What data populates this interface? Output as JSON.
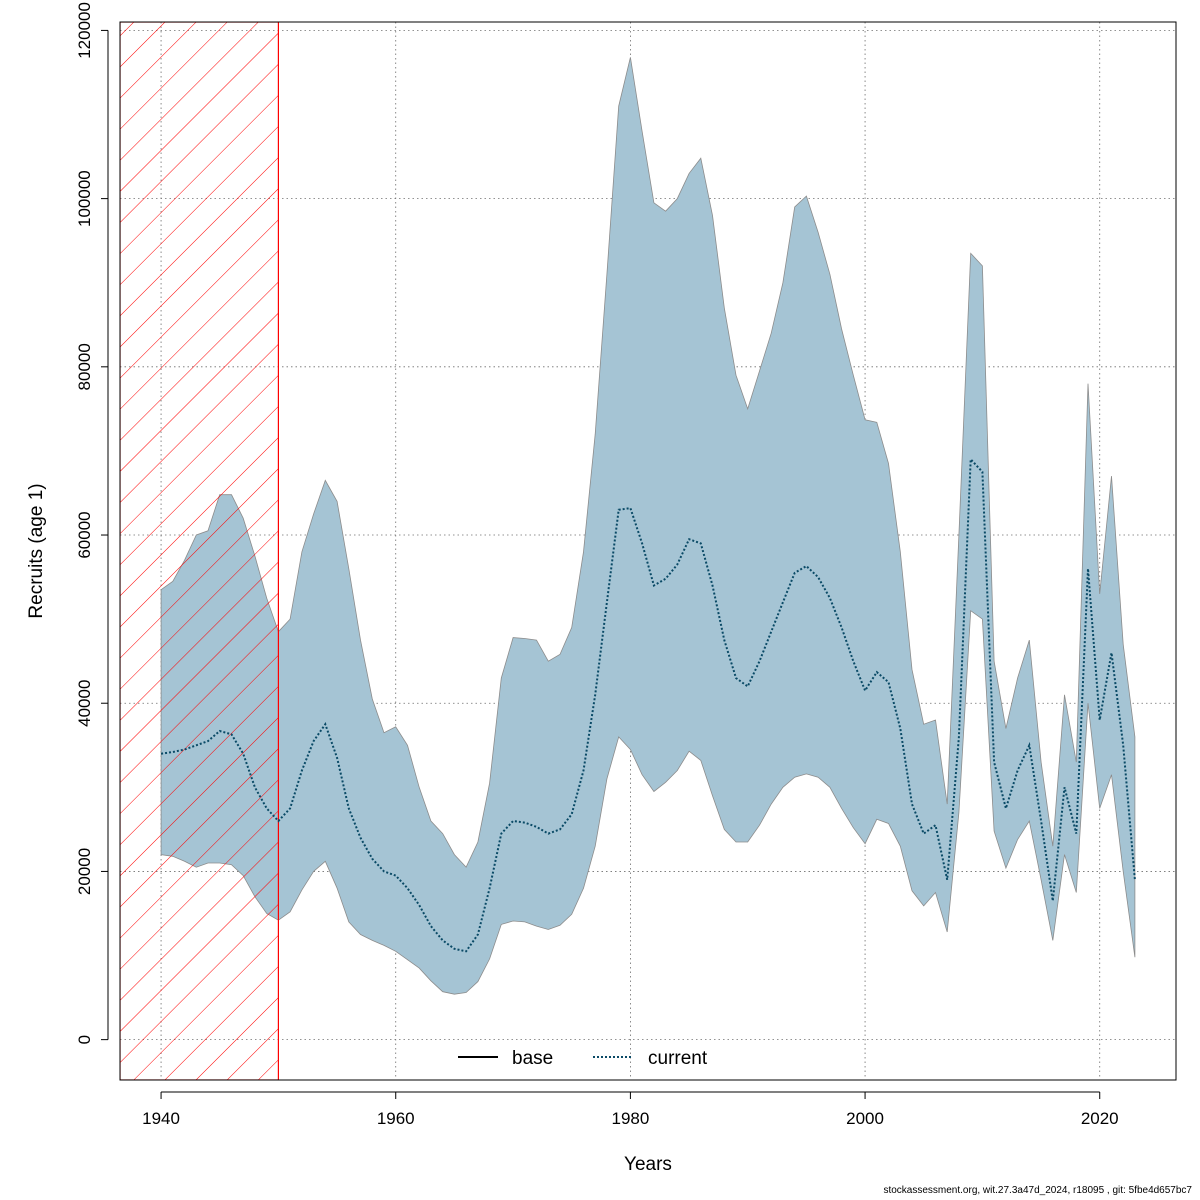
{
  "chart_data": {
    "type": "area",
    "xlabel": "Years",
    "ylabel": "Recruits (age 1)",
    "xlim": [
      1936.5,
      2026.5
    ],
    "ylim": [
      -4800,
      121000
    ],
    "x_ticks": [
      1940,
      1960,
      1980,
      2000,
      2020
    ],
    "y_ticks": [
      0,
      20000,
      40000,
      60000,
      80000,
      100000,
      120000
    ],
    "grid": true,
    "legend_position": "bottom-center",
    "hatched_region": {
      "x_start": 1936.5,
      "x_end": 1950,
      "color": "#ff0000"
    },
    "band_color": "#a5c4d4",
    "series": [
      {
        "name": "base",
        "line_style": "solid",
        "color": "#000000",
        "x": [],
        "y": []
      },
      {
        "name": "current",
        "line_style": "dotted",
        "color": "#0a4a66",
        "x": [
          1940,
          1941,
          1942,
          1943,
          1944,
          1945,
          1946,
          1947,
          1948,
          1949,
          1950,
          1951,
          1952,
          1953,
          1954,
          1955,
          1956,
          1957,
          1958,
          1959,
          1960,
          1961,
          1962,
          1963,
          1964,
          1965,
          1966,
          1967,
          1968,
          1969,
          1970,
          1971,
          1972,
          1973,
          1974,
          1975,
          1976,
          1977,
          1978,
          1979,
          1980,
          1981,
          1982,
          1983,
          1984,
          1985,
          1986,
          1987,
          1988,
          1989,
          1990,
          1991,
          1992,
          1993,
          1994,
          1995,
          1996,
          1997,
          1998,
          1999,
          2000,
          2001,
          2002,
          2003,
          2004,
          2005,
          2006,
          2007,
          2008,
          2009,
          2010,
          2011,
          2012,
          2013,
          2014,
          2015,
          2016,
          2017,
          2018,
          2019,
          2020,
          2021,
          2022,
          2023
        ],
        "y": [
          34000,
          34200,
          34500,
          35000,
          35500,
          36700,
          36300,
          34000,
          30000,
          27500,
          26000,
          27500,
          32000,
          35500,
          37500,
          33500,
          27500,
          24000,
          21500,
          20000,
          19500,
          18000,
          16000,
          13500,
          11800,
          10800,
          10500,
          12500,
          18000,
          24500,
          26000,
          25800,
          25300,
          24500,
          25000,
          26800,
          32000,
          41000,
          52000,
          63000,
          63200,
          59000,
          54000,
          54800,
          56500,
          59500,
          59000,
          54000,
          47500,
          43000,
          42000,
          45000,
          48500,
          52000,
          55500,
          56300,
          55000,
          52500,
          49000,
          45000,
          41500,
          43700,
          42500,
          37000,
          28000,
          24500,
          25500,
          19000,
          36000,
          69000,
          67500,
          33000,
          27500,
          32000,
          35000,
          26000,
          16500,
          30000,
          24500,
          56000,
          38000,
          46000,
          35000,
          19000
        ]
      }
    ],
    "band": {
      "x": [
        1940,
        1941,
        1942,
        1943,
        1944,
        1945,
        1946,
        1947,
        1948,
        1949,
        1950,
        1951,
        1952,
        1953,
        1954,
        1955,
        1956,
        1957,
        1958,
        1959,
        1960,
        1961,
        1962,
        1963,
        1964,
        1965,
        1966,
        1967,
        1968,
        1969,
        1970,
        1971,
        1972,
        1973,
        1974,
        1975,
        1976,
        1977,
        1978,
        1979,
        1980,
        1981,
        1982,
        1983,
        1984,
        1985,
        1986,
        1987,
        1988,
        1989,
        1990,
        1991,
        1992,
        1993,
        1994,
        1995,
        1996,
        1997,
        1998,
        1999,
        2000,
        2001,
        2002,
        2003,
        2004,
        2005,
        2006,
        2007,
        2008,
        2009,
        2010,
        2011,
        2012,
        2013,
        2014,
        2015,
        2016,
        2017,
        2018,
        2019,
        2020,
        2021,
        2022,
        2023
      ],
      "upper": [
        53500,
        54500,
        57000,
        60000,
        60500,
        64800,
        64800,
        62000,
        57500,
        52500,
        48500,
        50000,
        58000,
        62500,
        66500,
        64000,
        56000,
        47500,
        40500,
        36500,
        37200,
        35000,
        30000,
        26000,
        24500,
        22000,
        20500,
        23500,
        30500,
        43000,
        47800,
        47700,
        47500,
        45000,
        45800,
        49000,
        58000,
        72000,
        91000,
        111000,
        116800,
        108000,
        99500,
        98500,
        100000,
        103000,
        104800,
        98000,
        87000,
        79000,
        75000,
        79500,
        84000,
        90000,
        99000,
        100300,
        96000,
        91000,
        84500,
        79000,
        73700,
        73400,
        68500,
        58000,
        44000,
        37500,
        38000,
        28000,
        60000,
        93500,
        92000,
        45000,
        37000,
        43000,
        47500,
        33000,
        23000,
        41000,
        33000,
        78000,
        53000,
        67000,
        47000,
        36000
      ],
      "lower": [
        22000,
        21800,
        21200,
        20500,
        21000,
        21000,
        20800,
        19500,
        17000,
        15000,
        14200,
        15200,
        17800,
        20000,
        21200,
        18000,
        14000,
        12500,
        11800,
        11200,
        10500,
        9500,
        8500,
        7000,
        5700,
        5400,
        5600,
        6900,
        9600,
        13700,
        14100,
        14000,
        13500,
        13100,
        13600,
        14900,
        18000,
        23000,
        31000,
        36000,
        34500,
        31500,
        29500,
        30600,
        32000,
        34300,
        33200,
        29000,
        25000,
        23500,
        23500,
        25500,
        28000,
        30000,
        31200,
        31600,
        31200,
        30000,
        27500,
        25200,
        23300,
        26200,
        25700,
        23000,
        17700,
        15900,
        17500,
        12800,
        27000,
        51000,
        50000,
        24800,
        20400,
        23800,
        26000,
        19000,
        11800,
        22000,
        17500,
        40000,
        27500,
        31500,
        20000,
        9800
      ]
    }
  },
  "footer_text": "stockassessment.org, wit.27.3a47d_2024, r18095 , git: 5fbe4d657bc7"
}
